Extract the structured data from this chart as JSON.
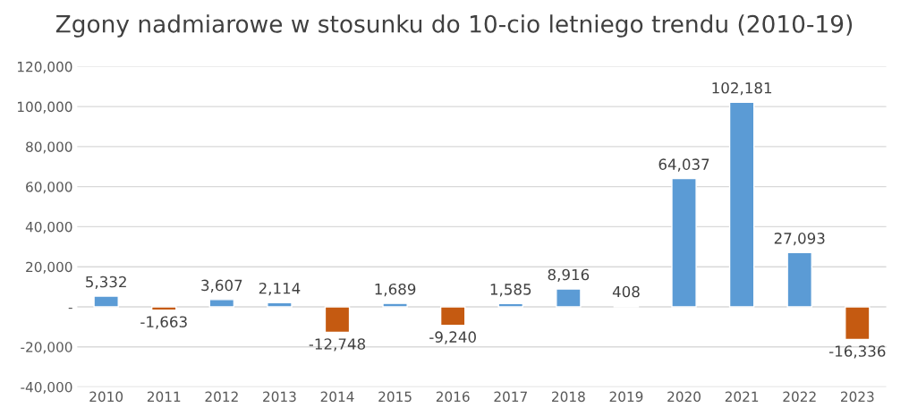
{
  "chart_data": {
    "type": "bar",
    "title": "Zgony nadmiarowe w stosunku do 10-cio letniego trendu (2010-19)",
    "categories": [
      "2010",
      "2011",
      "2012",
      "2013",
      "2014",
      "2015",
      "2016",
      "2017",
      "2018",
      "2019",
      "2020",
      "2021",
      "2022",
      "2023"
    ],
    "values": [
      5332,
      -1663,
      3607,
      2114,
      -12748,
      1689,
      -9240,
      1585,
      8916,
      408,
      64037,
      102181,
      27093,
      -16336
    ],
    "colors": [
      "#5b9bd5",
      "#c55a11",
      "#5b9bd5",
      "#5b9bd5",
      "#c55a11",
      "#5b9bd5",
      "#c55a11",
      "#5b9bd5",
      "#5b9bd5",
      "#5b9bd5",
      "#5b9bd5",
      "#5b9bd5",
      "#5b9bd5",
      "#c55a11"
    ],
    "value_labels": [
      "5,332",
      "-1,663",
      "3,607",
      "2,114",
      "-12,748",
      "1,689",
      "-9,240",
      "1,585",
      "8,916",
      "408",
      "64,037",
      "102,181",
      "27,093",
      "-16,336"
    ],
    "ylim": [
      -40000,
      120000
    ],
    "yticks": [
      {
        "value": -40000,
        "label": "-40,000"
      },
      {
        "value": -20000,
        "label": "-20,000"
      },
      {
        "value": 0,
        "label": "-"
      },
      {
        "value": 20000,
        "label": "20,000"
      },
      {
        "value": 40000,
        "label": "40,000"
      },
      {
        "value": 60000,
        "label": "60,000"
      },
      {
        "value": 80000,
        "label": "80,000"
      },
      {
        "value": 100000,
        "label": "100,000"
      },
      {
        "value": 120000,
        "label": "120,000"
      }
    ],
    "grid": "y"
  }
}
